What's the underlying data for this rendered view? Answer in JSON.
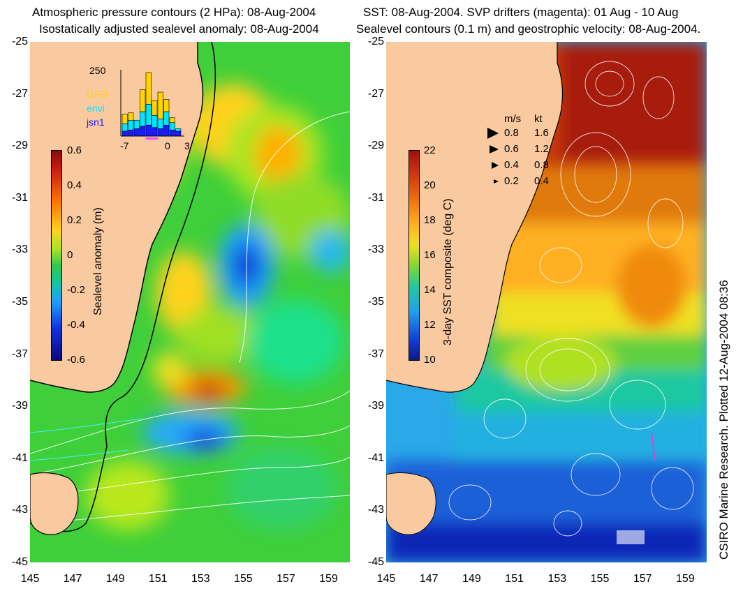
{
  "left_panel": {
    "title_line1": "Atmospheric pressure contours (2 HPa): 08-Aug-2004",
    "title_line2": "Isostatically adjusted sealevel anomaly: 08-Aug-2004",
    "y_ticks": [
      "-25",
      "-27",
      "-29",
      "-31",
      "-33",
      "-35",
      "-37",
      "-39",
      "-41",
      "-43",
      "-45"
    ],
    "x_ticks": [
      "145",
      "147",
      "149",
      "151",
      "153",
      "155",
      "157",
      "159"
    ],
    "colorbar": {
      "label": "Sealevel anomaly (m)",
      "ticks": [
        "0.6",
        "0.4",
        "0.2",
        "0",
        "-0.2",
        "-0.4",
        "-0.6"
      ],
      "range": [
        -0.6,
        0.6
      ]
    },
    "inset_histogram": {
      "y_max_label": "250",
      "x_ticks": [
        "-7",
        "0",
        "3"
      ],
      "legend": [
        {
          "name": "GFO",
          "color": "#ffd400"
        },
        {
          "name": "envi",
          "color": "#00e5ff"
        },
        {
          "name": "jsn1",
          "color": "#1a1aff"
        }
      ],
      "bars": [
        {
          "x": -7,
          "GFO": 40,
          "envi": 30,
          "jsn1": 20
        },
        {
          "x": -6,
          "GFO": 30,
          "envi": 40,
          "jsn1": 25
        },
        {
          "x": -5,
          "GFO": 0,
          "envi": 35,
          "jsn1": 30
        },
        {
          "x": -4,
          "GFO": 90,
          "envi": 60,
          "jsn1": 40
        },
        {
          "x": -3,
          "GFO": 130,
          "envi": 85,
          "jsn1": 45
        },
        {
          "x": -2,
          "GFO": 60,
          "envi": 50,
          "jsn1": 35
        },
        {
          "x": -1,
          "GFO": 110,
          "envi": 40,
          "jsn1": 30
        },
        {
          "x": 0,
          "GFO": 50,
          "envi": 55,
          "jsn1": 45
        },
        {
          "x": 1,
          "GFO": 20,
          "envi": 30,
          "jsn1": 25
        },
        {
          "x": 2,
          "GFO": 0,
          "envi": 10,
          "jsn1": 20
        }
      ]
    }
  },
  "right_panel": {
    "title_line1": "SST: 08-Aug-2004. SVP drifters (magenta): 01 Aug - 10 Aug",
    "title_line2": "Sealevel contours (0.1 m) and geostrophic velocity: 08-Aug-2004.",
    "y_ticks": [
      "-25",
      "-27",
      "-29",
      "-31",
      "-33",
      "-35",
      "-37",
      "-39",
      "-41",
      "-43",
      "-45"
    ],
    "x_ticks": [
      "145",
      "147",
      "149",
      "151",
      "153",
      "155",
      "157",
      "159"
    ],
    "colorbar": {
      "label": "3-day SST composite (deg C)",
      "ticks": [
        "22",
        "20",
        "18",
        "16",
        "14",
        "12",
        "10"
      ],
      "range": [
        9,
        22
      ]
    },
    "velocity_legend": {
      "header_ms": "m/s",
      "header_kt": "kt",
      "rows": [
        {
          "ms": "0.8",
          "kt": "1.6"
        },
        {
          "ms": "0.6",
          "kt": "1.2"
        },
        {
          "ms": "0.4",
          "kt": "0.8"
        },
        {
          "ms": "0.2",
          "kt": "0.4"
        }
      ]
    },
    "credit": "CSIRO Marine Research. Plotted 12-Aug-2004 08:36"
  },
  "colors": {
    "land": "#f9c9a0",
    "coast": "#000000"
  }
}
